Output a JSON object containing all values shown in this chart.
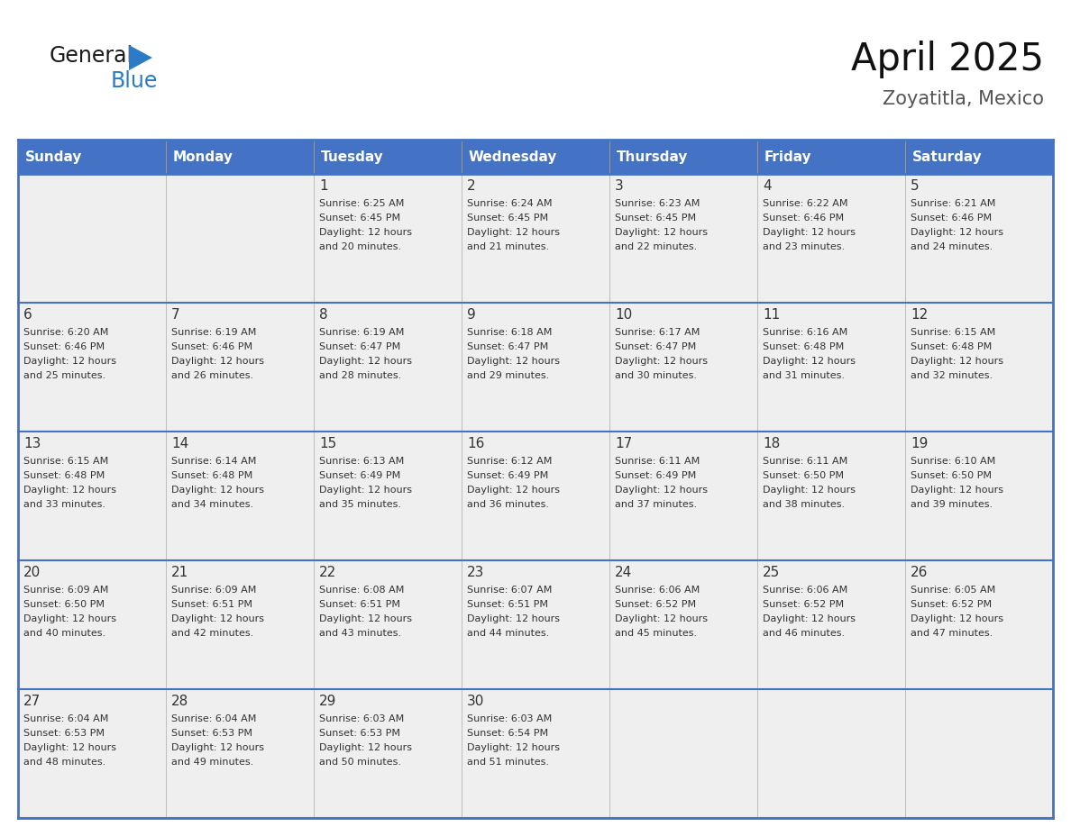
{
  "title": "April 2025",
  "subtitle": "Zoyatitla, Mexico",
  "days_of_week": [
    "Sunday",
    "Monday",
    "Tuesday",
    "Wednesday",
    "Thursday",
    "Friday",
    "Saturday"
  ],
  "header_bg": "#4472C4",
  "header_text_color": "#FFFFFF",
  "cell_bg": "#EFEFEF",
  "cell_bg_empty_last": "#E8E8E8",
  "border_color": "#4472C4",
  "row_line_color": "#4472C4",
  "text_color": "#333333",
  "calendar_data": [
    [
      {
        "day": "",
        "sunrise": "",
        "sunset": "",
        "daylight": ""
      },
      {
        "day": "",
        "sunrise": "",
        "sunset": "",
        "daylight": ""
      },
      {
        "day": "1",
        "sunrise": "Sunrise: 6:25 AM",
        "sunset": "Sunset: 6:45 PM",
        "daylight": "Daylight: 12 hours\nand 20 minutes."
      },
      {
        "day": "2",
        "sunrise": "Sunrise: 6:24 AM",
        "sunset": "Sunset: 6:45 PM",
        "daylight": "Daylight: 12 hours\nand 21 minutes."
      },
      {
        "day": "3",
        "sunrise": "Sunrise: 6:23 AM",
        "sunset": "Sunset: 6:45 PM",
        "daylight": "Daylight: 12 hours\nand 22 minutes."
      },
      {
        "day": "4",
        "sunrise": "Sunrise: 6:22 AM",
        "sunset": "Sunset: 6:46 PM",
        "daylight": "Daylight: 12 hours\nand 23 minutes."
      },
      {
        "day": "5",
        "sunrise": "Sunrise: 6:21 AM",
        "sunset": "Sunset: 6:46 PM",
        "daylight": "Daylight: 12 hours\nand 24 minutes."
      }
    ],
    [
      {
        "day": "6",
        "sunrise": "Sunrise: 6:20 AM",
        "sunset": "Sunset: 6:46 PM",
        "daylight": "Daylight: 12 hours\nand 25 minutes."
      },
      {
        "day": "7",
        "sunrise": "Sunrise: 6:19 AM",
        "sunset": "Sunset: 6:46 PM",
        "daylight": "Daylight: 12 hours\nand 26 minutes."
      },
      {
        "day": "8",
        "sunrise": "Sunrise: 6:19 AM",
        "sunset": "Sunset: 6:47 PM",
        "daylight": "Daylight: 12 hours\nand 28 minutes."
      },
      {
        "day": "9",
        "sunrise": "Sunrise: 6:18 AM",
        "sunset": "Sunset: 6:47 PM",
        "daylight": "Daylight: 12 hours\nand 29 minutes."
      },
      {
        "day": "10",
        "sunrise": "Sunrise: 6:17 AM",
        "sunset": "Sunset: 6:47 PM",
        "daylight": "Daylight: 12 hours\nand 30 minutes."
      },
      {
        "day": "11",
        "sunrise": "Sunrise: 6:16 AM",
        "sunset": "Sunset: 6:48 PM",
        "daylight": "Daylight: 12 hours\nand 31 minutes."
      },
      {
        "day": "12",
        "sunrise": "Sunrise: 6:15 AM",
        "sunset": "Sunset: 6:48 PM",
        "daylight": "Daylight: 12 hours\nand 32 minutes."
      }
    ],
    [
      {
        "day": "13",
        "sunrise": "Sunrise: 6:15 AM",
        "sunset": "Sunset: 6:48 PM",
        "daylight": "Daylight: 12 hours\nand 33 minutes."
      },
      {
        "day": "14",
        "sunrise": "Sunrise: 6:14 AM",
        "sunset": "Sunset: 6:48 PM",
        "daylight": "Daylight: 12 hours\nand 34 minutes."
      },
      {
        "day": "15",
        "sunrise": "Sunrise: 6:13 AM",
        "sunset": "Sunset: 6:49 PM",
        "daylight": "Daylight: 12 hours\nand 35 minutes."
      },
      {
        "day": "16",
        "sunrise": "Sunrise: 6:12 AM",
        "sunset": "Sunset: 6:49 PM",
        "daylight": "Daylight: 12 hours\nand 36 minutes."
      },
      {
        "day": "17",
        "sunrise": "Sunrise: 6:11 AM",
        "sunset": "Sunset: 6:49 PM",
        "daylight": "Daylight: 12 hours\nand 37 minutes."
      },
      {
        "day": "18",
        "sunrise": "Sunrise: 6:11 AM",
        "sunset": "Sunset: 6:50 PM",
        "daylight": "Daylight: 12 hours\nand 38 minutes."
      },
      {
        "day": "19",
        "sunrise": "Sunrise: 6:10 AM",
        "sunset": "Sunset: 6:50 PM",
        "daylight": "Daylight: 12 hours\nand 39 minutes."
      }
    ],
    [
      {
        "day": "20",
        "sunrise": "Sunrise: 6:09 AM",
        "sunset": "Sunset: 6:50 PM",
        "daylight": "Daylight: 12 hours\nand 40 minutes."
      },
      {
        "day": "21",
        "sunrise": "Sunrise: 6:09 AM",
        "sunset": "Sunset: 6:51 PM",
        "daylight": "Daylight: 12 hours\nand 42 minutes."
      },
      {
        "day": "22",
        "sunrise": "Sunrise: 6:08 AM",
        "sunset": "Sunset: 6:51 PM",
        "daylight": "Daylight: 12 hours\nand 43 minutes."
      },
      {
        "day": "23",
        "sunrise": "Sunrise: 6:07 AM",
        "sunset": "Sunset: 6:51 PM",
        "daylight": "Daylight: 12 hours\nand 44 minutes."
      },
      {
        "day": "24",
        "sunrise": "Sunrise: 6:06 AM",
        "sunset": "Sunset: 6:52 PM",
        "daylight": "Daylight: 12 hours\nand 45 minutes."
      },
      {
        "day": "25",
        "sunrise": "Sunrise: 6:06 AM",
        "sunset": "Sunset: 6:52 PM",
        "daylight": "Daylight: 12 hours\nand 46 minutes."
      },
      {
        "day": "26",
        "sunrise": "Sunrise: 6:05 AM",
        "sunset": "Sunset: 6:52 PM",
        "daylight": "Daylight: 12 hours\nand 47 minutes."
      }
    ],
    [
      {
        "day": "27",
        "sunrise": "Sunrise: 6:04 AM",
        "sunset": "Sunset: 6:53 PM",
        "daylight": "Daylight: 12 hours\nand 48 minutes."
      },
      {
        "day": "28",
        "sunrise": "Sunrise: 6:04 AM",
        "sunset": "Sunset: 6:53 PM",
        "daylight": "Daylight: 12 hours\nand 49 minutes."
      },
      {
        "day": "29",
        "sunrise": "Sunrise: 6:03 AM",
        "sunset": "Sunset: 6:53 PM",
        "daylight": "Daylight: 12 hours\nand 50 minutes."
      },
      {
        "day": "30",
        "sunrise": "Sunrise: 6:03 AM",
        "sunset": "Sunset: 6:54 PM",
        "daylight": "Daylight: 12 hours\nand 51 minutes."
      },
      {
        "day": "",
        "sunrise": "",
        "sunset": "",
        "daylight": ""
      },
      {
        "day": "",
        "sunrise": "",
        "sunset": "",
        "daylight": ""
      },
      {
        "day": "",
        "sunrise": "",
        "sunset": "",
        "daylight": ""
      }
    ]
  ],
  "logo_text1": "General",
  "logo_text2": "Blue",
  "logo_text1_color": "#1a1a1a",
  "logo_text2_color": "#2B7CC8",
  "logo_triangle_color": "#2B7CC8",
  "title_fontsize": 30,
  "subtitle_fontsize": 15,
  "header_fontsize": 11,
  "day_number_fontsize": 11,
  "cell_text_fontsize": 8
}
